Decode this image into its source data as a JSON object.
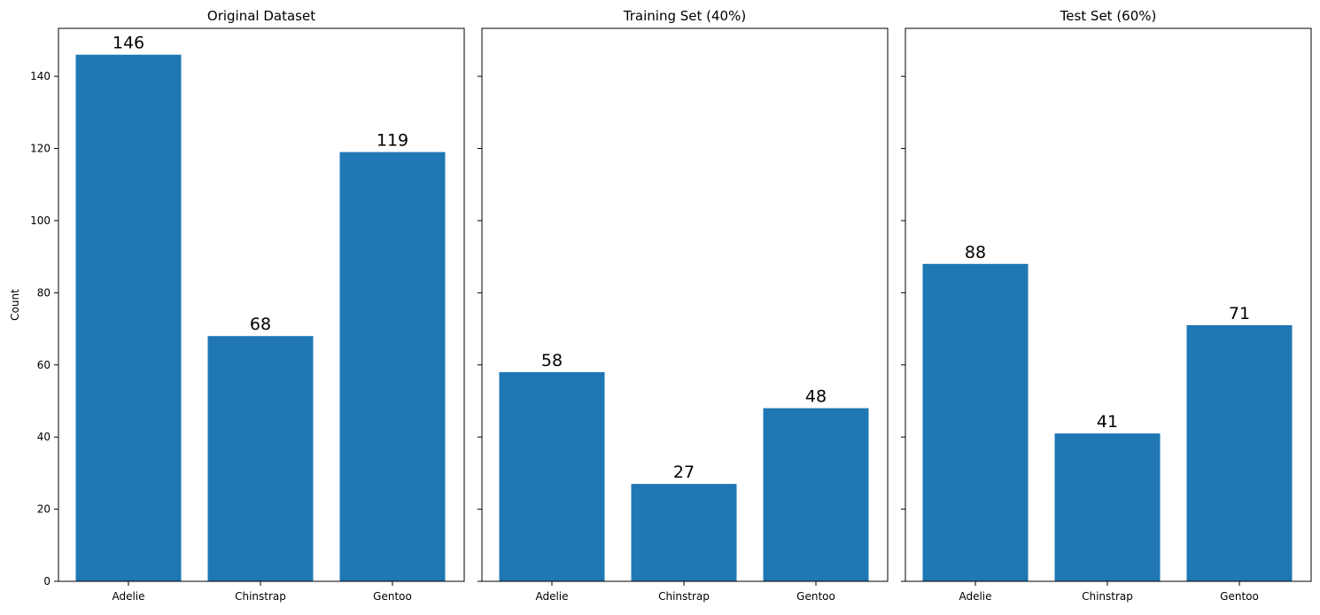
{
  "chart_data": [
    {
      "type": "bar",
      "title": "Original Dataset",
      "categories": [
        "Adelie",
        "Chinstrap",
        "Gentoo"
      ],
      "values": [
        146,
        68,
        119
      ],
      "data_labels": [
        "146",
        "68",
        "119"
      ],
      "xlabel": "",
      "ylabel": "Count",
      "ylim": [
        0,
        153.3
      ],
      "yticks": [
        0,
        20,
        40,
        60,
        80,
        100,
        120,
        140
      ],
      "ytick_labels": [
        "0",
        "20",
        "40",
        "60",
        "80",
        "100",
        "120",
        "140"
      ],
      "show_ytick_labels": true,
      "color": "#1f77b4",
      "grid": false
    },
    {
      "type": "bar",
      "title": "Training Set (40%)",
      "categories": [
        "Adelie",
        "Chinstrap",
        "Gentoo"
      ],
      "values": [
        58,
        27,
        48
      ],
      "data_labels": [
        "58",
        "27",
        "48"
      ],
      "xlabel": "",
      "ylabel": "",
      "ylim": [
        0,
        153.3
      ],
      "yticks": [
        0,
        20,
        40,
        60,
        80,
        100,
        120,
        140
      ],
      "show_ytick_labels": false,
      "color": "#1f77b4",
      "grid": false
    },
    {
      "type": "bar",
      "title": "Test Set (60%)",
      "categories": [
        "Adelie",
        "Chinstrap",
        "Gentoo"
      ],
      "values": [
        88,
        41,
        71
      ],
      "data_labels": [
        "88",
        "41",
        "71"
      ],
      "xlabel": "",
      "ylabel": "",
      "ylim": [
        0,
        153.3
      ],
      "yticks": [
        0,
        20,
        40,
        60,
        80,
        100,
        120,
        140
      ],
      "show_ytick_labels": false,
      "color": "#1f77b4",
      "grid": false
    }
  ]
}
